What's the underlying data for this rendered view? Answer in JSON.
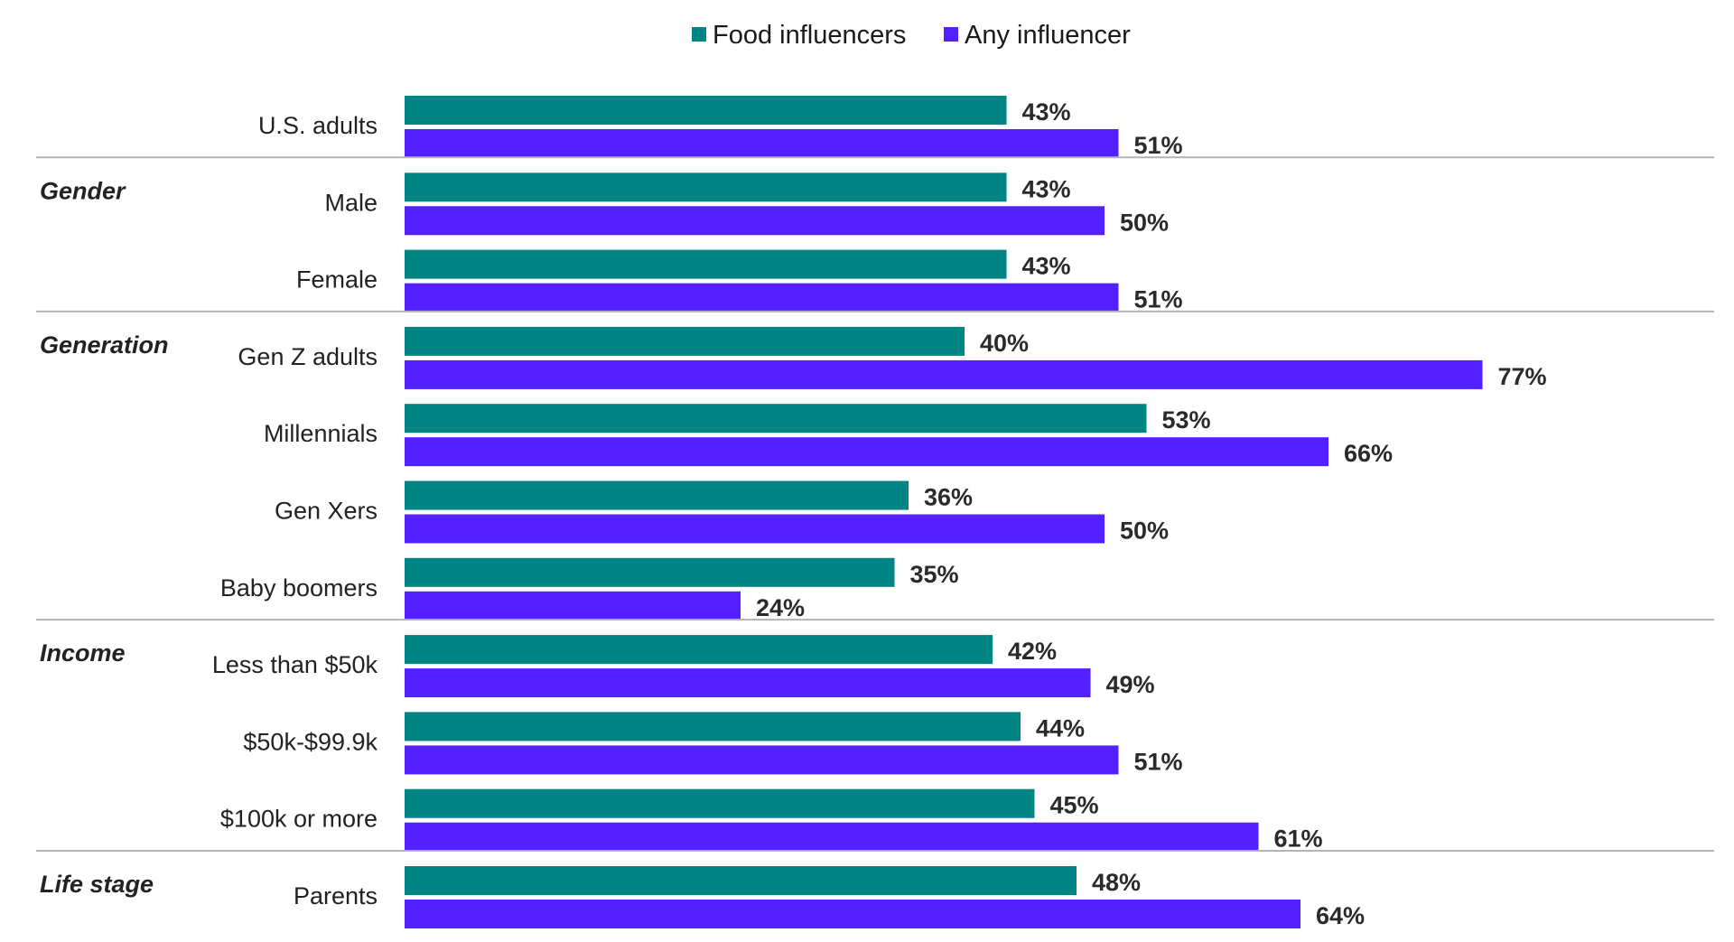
{
  "chart_data": {
    "type": "bar",
    "orientation": "horizontal",
    "legend_position": "top-center",
    "grid": false,
    "xlim": [
      0,
      100
    ],
    "value_suffix": "%",
    "series": [
      {
        "name": "Food influencers",
        "color": "#008484"
      },
      {
        "name": "Any influencer",
        "color": "#5320FF"
      }
    ],
    "rows": [
      {
        "group": "",
        "label": "U.S. adults",
        "values": [
          43,
          51
        ]
      },
      {
        "group": "Gender",
        "label": "Male",
        "values": [
          43,
          50
        ]
      },
      {
        "group": "",
        "label": "Female",
        "values": [
          43,
          51
        ]
      },
      {
        "group": "Generation",
        "label": "Gen Z adults",
        "values": [
          40,
          77
        ]
      },
      {
        "group": "",
        "label": "Millennials",
        "values": [
          53,
          66
        ]
      },
      {
        "group": "",
        "label": "Gen Xers",
        "values": [
          36,
          50
        ]
      },
      {
        "group": "",
        "label": "Baby boomers",
        "values": [
          35,
          24
        ]
      },
      {
        "group": "Income",
        "label": "Less than $50k",
        "values": [
          42,
          49
        ]
      },
      {
        "group": "",
        "label": "$50k-$99.9k",
        "values": [
          44,
          51
        ]
      },
      {
        "group": "",
        "label": "$100k or more",
        "values": [
          45,
          61
        ]
      },
      {
        "group": "Life stage",
        "label": "Parents",
        "values": [
          48,
          64
        ]
      }
    ]
  }
}
